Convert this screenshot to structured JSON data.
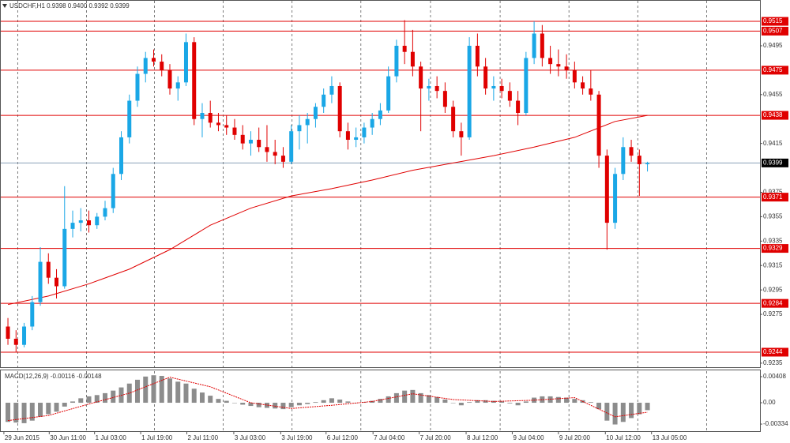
{
  "chart_data": [
    {
      "type": "candlestick",
      "title": "USDCHF,H1  0.9398 0.9400 0.9392 0.9399",
      "up_color": "#1aa7e6",
      "down_color": "#e00000",
      "open": [
        0.9265,
        0.9255,
        0.925,
        0.9265,
        0.9285,
        0.9318,
        0.9305,
        0.9298,
        0.9345,
        0.935,
        0.9352,
        0.9348,
        0.9355,
        0.9362,
        0.939,
        0.942,
        0.945,
        0.9472,
        0.9485,
        0.9482,
        0.9475,
        0.946,
        0.9465,
        0.9498,
        0.9435,
        0.944,
        0.9432,
        0.943,
        0.9428,
        0.9422,
        0.9415,
        0.9418,
        0.9412,
        0.9408,
        0.9405,
        0.94,
        0.9425,
        0.943,
        0.9435,
        0.9445,
        0.9455,
        0.9462,
        0.9425,
        0.9418,
        0.942,
        0.9428,
        0.9435,
        0.9442,
        0.947,
        0.9495,
        0.949,
        0.9478,
        0.946,
        0.9462,
        0.9458,
        0.9445,
        0.9425,
        0.942,
        0.9495,
        0.9478,
        0.946,
        0.9462,
        0.9458,
        0.945,
        0.944,
        0.9485,
        0.9505,
        0.9485,
        0.948,
        0.9478,
        0.9475,
        0.9465,
        0.946,
        0.9455,
        0.9405,
        0.935,
        0.939,
        0.9412,
        0.9405,
        0.9398
      ],
      "high": [
        0.9272,
        0.9262,
        0.9268,
        0.929,
        0.933,
        0.9325,
        0.9312,
        0.938,
        0.936,
        0.9362,
        0.936,
        0.9358,
        0.9368,
        0.9395,
        0.9425,
        0.9455,
        0.9478,
        0.949,
        0.9492,
        0.9488,
        0.948,
        0.947,
        0.9505,
        0.9502,
        0.9448,
        0.945,
        0.944,
        0.9438,
        0.9435,
        0.943,
        0.9425,
        0.9428,
        0.943,
        0.9418,
        0.9412,
        0.943,
        0.9438,
        0.944,
        0.9448,
        0.946,
        0.947,
        0.9465,
        0.9432,
        0.9428,
        0.9432,
        0.944,
        0.9448,
        0.9478,
        0.95,
        0.9516,
        0.9508,
        0.9482,
        0.9468,
        0.947,
        0.9465,
        0.945,
        0.9432,
        0.9502,
        0.9505,
        0.9485,
        0.947,
        0.9468,
        0.9465,
        0.9458,
        0.949,
        0.9515,
        0.9512,
        0.9495,
        0.9492,
        0.9488,
        0.9482,
        0.947,
        0.9475,
        0.9458,
        0.941,
        0.9395,
        0.942,
        0.9418,
        0.941,
        0.94
      ],
      "low": [
        0.925,
        0.9244,
        0.9248,
        0.9262,
        0.9282,
        0.93,
        0.9288,
        0.9296,
        0.9338,
        0.9343,
        0.9342,
        0.9345,
        0.9352,
        0.9358,
        0.9385,
        0.9415,
        0.9445,
        0.9465,
        0.9478,
        0.947,
        0.9455,
        0.945,
        0.9462,
        0.943,
        0.942,
        0.9428,
        0.9425,
        0.9422,
        0.9418,
        0.941,
        0.9405,
        0.9408,
        0.94,
        0.9398,
        0.9395,
        0.9398,
        0.941,
        0.9415,
        0.9428,
        0.944,
        0.9448,
        0.942,
        0.941,
        0.9412,
        0.9415,
        0.9422,
        0.943,
        0.944,
        0.9465,
        0.948,
        0.947,
        0.9425,
        0.945,
        0.9452,
        0.944,
        0.942,
        0.9405,
        0.9418,
        0.947,
        0.9455,
        0.945,
        0.9452,
        0.9445,
        0.943,
        0.9438,
        0.948,
        0.9478,
        0.9472,
        0.947,
        0.9468,
        0.946,
        0.9455,
        0.945,
        0.9395,
        0.9328,
        0.9345,
        0.9385,
        0.94,
        0.9372,
        0.9392
      ],
      "close": [
        0.9255,
        0.925,
        0.9265,
        0.9285,
        0.9318,
        0.9305,
        0.9298,
        0.9345,
        0.935,
        0.9352,
        0.9348,
        0.9355,
        0.9362,
        0.939,
        0.942,
        0.945,
        0.9472,
        0.9485,
        0.9482,
        0.9475,
        0.946,
        0.9465,
        0.9498,
        0.9435,
        0.944,
        0.9432,
        0.943,
        0.9428,
        0.9422,
        0.9415,
        0.9418,
        0.9412,
        0.9408,
        0.9405,
        0.94,
        0.9425,
        0.943,
        0.9435,
        0.9445,
        0.9455,
        0.9462,
        0.9425,
        0.9418,
        0.942,
        0.9428,
        0.9435,
        0.9442,
        0.947,
        0.9495,
        0.949,
        0.9478,
        0.946,
        0.9462,
        0.9458,
        0.9445,
        0.9425,
        0.942,
        0.9495,
        0.9478,
        0.946,
        0.9462,
        0.9458,
        0.945,
        0.944,
        0.9485,
        0.9505,
        0.9485,
        0.948,
        0.9478,
        0.9475,
        0.9465,
        0.946,
        0.9455,
        0.9405,
        0.935,
        0.939,
        0.9412,
        0.9405,
        0.9398,
        0.9399
      ],
      "overlays": [
        {
          "color": "#e00000",
          "x": [
            0,
            5,
            10,
            15,
            20,
            25,
            30,
            35,
            40,
            45,
            50,
            55,
            60,
            65,
            70,
            75,
            79
          ],
          "values": [
            0.9283,
            0.929,
            0.93,
            0.9312,
            0.9328,
            0.9348,
            0.9362,
            0.9372,
            0.9378,
            0.9385,
            0.9393,
            0.9399,
            0.9405,
            0.9412,
            0.942,
            0.9433,
            0.9438
          ]
        }
      ],
      "levels": [
        0.9515,
        0.9507,
        0.9475,
        0.9438,
        0.9371,
        0.9329,
        0.9284,
        0.9244
      ],
      "level_color": "#e00000",
      "price": 0.9399,
      "price_color": "#8aa0b8",
      "xlim": [
        -0.98,
        92.9
      ],
      "xgrid": [
        1.2,
        9.7,
        18.1,
        26.6,
        35.1,
        43.6,
        52.2,
        60.8,
        69.3,
        77.8,
        86.3
      ],
      "ylim": [
        0.92317,
        0.95325
      ],
      "yticks": [
        0.9495,
        0.9455,
        0.9415,
        0.9375,
        0.9355,
        0.9335,
        0.9315,
        0.9295,
        0.9275,
        0.9235
      ]
    },
    {
      "type": "macd",
      "title": "MACD(12,26,9) -0.00116 -0.00148",
      "color": "#8c8c8c",
      "signal_color": "#e00000",
      "values": [
        -0.003,
        -0.0031,
        -0.0032,
        -0.0028,
        -0.0022,
        -0.0018,
        -0.0014,
        -0.0006,
        0.0002,
        0.0007,
        0.001,
        0.0012,
        0.0015,
        0.0019,
        0.0024,
        0.003,
        0.0036,
        0.0041,
        0.0043,
        0.0042,
        0.0038,
        0.0033,
        0.003,
        0.0022,
        0.0016,
        0.0011,
        0.0006,
        0.0003,
        0.0,
        -0.0003,
        -0.0005,
        -0.0007,
        -0.0008,
        -0.0009,
        -0.001,
        -0.0007,
        -0.0004,
        -0.0002,
        0.0001,
        0.0004,
        0.0007,
        0.0005,
        0.0002,
        0.0,
        0.0001,
        0.0003,
        0.0006,
        0.001,
        0.0015,
        0.0019,
        0.002,
        0.0015,
        0.0012,
        0.0009,
        0.0005,
        0.0,
        -0.0004,
        0.0001,
        0.0004,
        0.0004,
        0.0003,
        0.0002,
        -0.0001,
        -0.0004,
        0.0002,
        0.0008,
        0.001,
        0.001,
        0.0009,
        0.0008,
        0.0006,
        0.0004,
        0.0001,
        -0.001,
        -0.0028,
        -0.0034,
        -0.003,
        -0.0024,
        -0.0018,
        -0.00116
      ],
      "signal": {
        "x": [
          0,
          5,
          10,
          15,
          20,
          25,
          30,
          35,
          40,
          45,
          50,
          55,
          60,
          65,
          70,
          75,
          79
        ],
        "values": [
          -0.0028,
          -0.002,
          -0.0002,
          0.0015,
          0.004,
          0.0025,
          0.0,
          -0.0009,
          -0.0004,
          0.0002,
          0.0014,
          0.0005,
          0.0002,
          0.0004,
          0.0008,
          -0.0022,
          -0.00148
        ]
      },
      "xlim": [
        -0.98,
        92.9
      ],
      "xgrid": [
        1.2,
        9.7,
        18.1,
        26.6,
        35.1,
        43.6,
        52.2,
        60.8,
        69.3,
        77.8,
        86.3
      ],
      "ylim": [
        -0.00457,
        0.00507
      ],
      "yticks": [
        0.00408,
        {
          "value": 0,
          "label": "0.00"
        },
        -0.00334
      ],
      "xticks": [
        {
          "value": -0.5,
          "label": "29 Jun 2015"
        },
        {
          "value": 5.1,
          "label": "30 Jun 11:00"
        },
        {
          "value": 10.7,
          "label": "1 Jul 03:00"
        },
        {
          "value": 16.4,
          "label": "1 Jul 19:00"
        },
        {
          "value": 22.1,
          "label": "2 Jul 11:00"
        },
        {
          "value": 27.9,
          "label": "3 Jul 03:00"
        },
        {
          "value": 33.7,
          "label": "3 Jul 19:00"
        },
        {
          "value": 39.3,
          "label": "6 Jul 12:00"
        },
        {
          "value": 45.1,
          "label": "7 Jul 04:00"
        },
        {
          "value": 50.8,
          "label": "7 Jul 20:00"
        },
        {
          "value": 56.6,
          "label": "8 Jul 12:00"
        },
        {
          "value": 62.3,
          "label": "9 Jul 04:00"
        },
        {
          "value": 68.0,
          "label": "9 Jul 20:00"
        },
        {
          "value": 73.8,
          "label": "10 Jul 12:00"
        },
        {
          "value": 79.5,
          "label": "13 Jul 05:00"
        }
      ]
    }
  ]
}
